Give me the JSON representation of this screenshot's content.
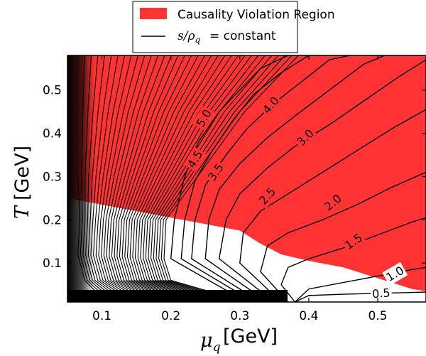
{
  "chart_data": {
    "type": "line",
    "xlabel": "μq [GeV]",
    "ylabel": "T [GeV]",
    "xlim": [
      0.05,
      0.57
    ],
    "ylim": [
      0.01,
      0.58
    ],
    "x_ticks": [
      "0.1",
      "0.2",
      "0.3",
      "0.4",
      "0.5"
    ],
    "y_ticks": [
      "0.1",
      "0.2",
      "0.3",
      "0.4",
      "0.5"
    ],
    "legend": {
      "placement": "top-center",
      "entries": [
        "Causality Violation Region",
        "s/ρq = constant"
      ]
    },
    "colors": {
      "violation_region": "#ff3333",
      "contour": "#000000"
    },
    "causality_violation_boundary": {
      "x": [
        0.05,
        0.1,
        0.15,
        0.2,
        0.25,
        0.3,
        0.33,
        0.36,
        0.4,
        0.45,
        0.5,
        0.55,
        0.57
      ],
      "y": [
        0.25,
        0.235,
        0.22,
        0.205,
        0.19,
        0.175,
        0.145,
        0.12,
        0.105,
        0.09,
        0.065,
        0.04,
        0.035
      ]
    },
    "contour_levels": [
      "0.5",
      "1.0",
      "1.5",
      "2.0",
      "2.5",
      "3.0",
      "3.5",
      "4.0",
      "4.5",
      "5.0"
    ],
    "contours": [
      {
        "name": "0.5",
        "x": [
          0.38,
          0.4,
          0.45,
          0.5,
          0.55,
          0.57
        ],
        "y": [
          0.01,
          0.025,
          0.028,
          0.03,
          0.032,
          0.033
        ]
      },
      {
        "name": "1.0",
        "x": [
          0.38,
          0.4,
          0.45,
          0.5,
          0.55,
          0.57
        ],
        "y": [
          0.01,
          0.04,
          0.055,
          0.07,
          0.085,
          0.09
        ]
      },
      {
        "name": "1.5",
        "x": [
          0.38,
          0.36,
          0.37,
          0.4,
          0.45,
          0.5,
          0.55,
          0.57
        ],
        "y": [
          0.01,
          0.05,
          0.09,
          0.11,
          0.135,
          0.165,
          0.195,
          0.205
        ]
      },
      {
        "name": "2.0",
        "x": [
          0.37,
          0.33,
          0.34,
          0.37,
          0.42,
          0.47,
          0.52,
          0.57
        ],
        "y": [
          0.01,
          0.08,
          0.14,
          0.17,
          0.2,
          0.235,
          0.275,
          0.31
        ]
      },
      {
        "name": "2.5",
        "x": [
          0.36,
          0.3,
          0.305,
          0.33,
          0.37,
          0.42,
          0.47,
          0.52,
          0.57
        ],
        "y": [
          0.01,
          0.1,
          0.17,
          0.22,
          0.26,
          0.31,
          0.36,
          0.41,
          0.455
        ]
      },
      {
        "name": "3.0",
        "x": [
          0.35,
          0.27,
          0.28,
          0.3,
          0.34,
          0.38,
          0.43,
          0.48,
          0.53,
          0.57
        ],
        "y": [
          0.01,
          0.11,
          0.2,
          0.26,
          0.32,
          0.37,
          0.42,
          0.475,
          0.53,
          0.57
        ]
      },
      {
        "name": "3.5",
        "x": [
          0.34,
          0.25,
          0.255,
          0.27,
          0.3,
          0.34,
          0.38,
          0.43,
          0.48,
          0.51
        ],
        "y": [
          0.01,
          0.11,
          0.2,
          0.27,
          0.33,
          0.39,
          0.44,
          0.5,
          0.56,
          0.58
        ]
      },
      {
        "name": "4.0",
        "x": [
          0.33,
          0.23,
          0.235,
          0.25,
          0.28,
          0.31,
          0.35,
          0.39,
          0.43,
          0.46
        ],
        "y": [
          0.01,
          0.11,
          0.2,
          0.28,
          0.35,
          0.41,
          0.47,
          0.52,
          0.57,
          0.58
        ]
      },
      {
        "name": "4.5",
        "x": [
          0.32,
          0.215,
          0.22,
          0.235,
          0.26,
          0.29,
          0.32,
          0.36,
          0.4,
          0.42
        ],
        "y": [
          0.01,
          0.11,
          0.2,
          0.29,
          0.36,
          0.43,
          0.49,
          0.54,
          0.58,
          0.58
        ]
      },
      {
        "name": "5.0",
        "x": [
          0.31,
          0.2,
          0.205,
          0.22,
          0.24,
          0.27,
          0.3,
          0.33,
          0.37,
          0.385
        ],
        "y": [
          0.01,
          0.11,
          0.2,
          0.3,
          0.38,
          0.45,
          0.5,
          0.55,
          0.58,
          0.58
        ]
      }
    ]
  }
}
